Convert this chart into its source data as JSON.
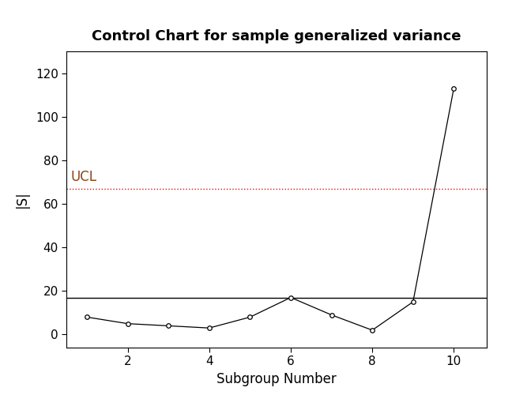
{
  "title": "Control Chart for sample generalized variance",
  "xlabel": "Subgroup Number",
  "ylabel": "|S|",
  "x": [
    1,
    2,
    3,
    4,
    5,
    6,
    7,
    8,
    9,
    10
  ],
  "y": [
    8,
    5,
    4,
    3,
    8,
    17,
    9,
    2,
    15,
    113
  ],
  "ucl": 67,
  "cl": 17,
  "ucl_color": "#FF0000",
  "cl_color": "#000000",
  "line_color": "#000000",
  "marker_color": "#000000",
  "ucl_label": "UCL",
  "ucl_label_color": "#8B4513",
  "ylim": [
    -6,
    130
  ],
  "xlim": [
    0.5,
    10.8
  ],
  "yticks": [
    0,
    20,
    40,
    60,
    80,
    100,
    120
  ],
  "xticks": [
    2,
    4,
    6,
    8,
    10
  ],
  "title_fontsize": 13,
  "axis_label_fontsize": 12,
  "tick_fontsize": 11,
  "background_color": "#ffffff",
  "marker_size": 4,
  "line_width": 0.9
}
